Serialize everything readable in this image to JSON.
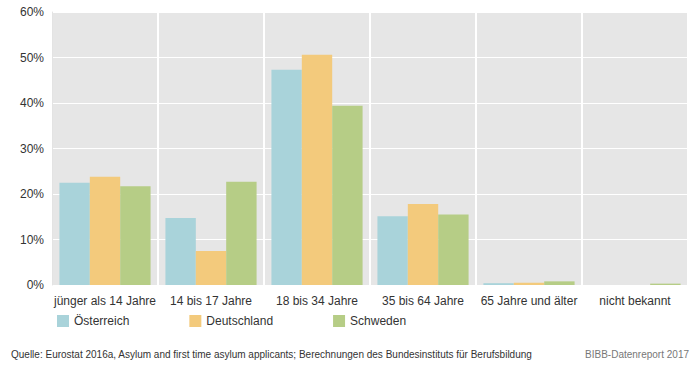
{
  "chart_data": {
    "type": "bar",
    "categories": [
      "jünger als 14 Jahre",
      "14 bis 17 Jahre",
      "18 bis 34 Jahre",
      "35 bis 64 Jahre",
      "65 Jahre und älter",
      "nicht bekannt"
    ],
    "series": [
      {
        "name": "Österreich",
        "color": "#a9d3da",
        "values": [
          22.5,
          14.7,
          47.3,
          15.1,
          0.4,
          0.0
        ]
      },
      {
        "name": "Deutschland",
        "color": "#f3ca7c",
        "values": [
          23.8,
          7.5,
          50.6,
          17.8,
          0.5,
          0.0
        ]
      },
      {
        "name": "Schweden",
        "color": "#b6cd86",
        "values": [
          21.7,
          22.7,
          39.4,
          15.5,
          0.8,
          0.3
        ]
      }
    ],
    "ylim": [
      0,
      60
    ],
    "yticks": [
      {
        "value": 0,
        "label": "0%"
      },
      {
        "value": 10,
        "label": "10%"
      },
      {
        "value": 20,
        "label": "20%"
      },
      {
        "value": 30,
        "label": "30%"
      },
      {
        "value": 40,
        "label": "40%"
      },
      {
        "value": 50,
        "label": "50%"
      },
      {
        "value": 60,
        "label": "60%"
      }
    ],
    "grid": true,
    "legend": "bottom-left",
    "source": "Quelle: Eurostat 2016a, Asylum and first time asylum applicants; Berechnungen des Bundesinstituts für Berufsbildung",
    "credit": "BIBB-Datenreport 2017"
  }
}
